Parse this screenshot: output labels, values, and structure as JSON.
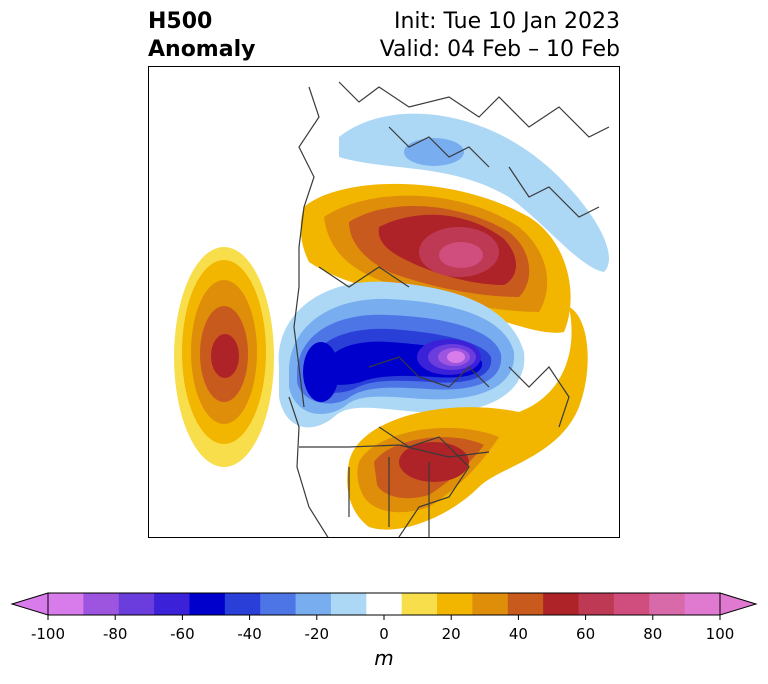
{
  "title": {
    "left_line1": "H500",
    "left_line2": "Anomaly",
    "right_line1": "Init: Tue 10 Jan 2023",
    "right_line2": "Valid: 04 Feb – 10 Feb"
  },
  "map": {
    "description_icon": "map-anomaly"
  },
  "colorbar": {
    "unit": "m",
    "ticks": [
      "-100",
      "-80",
      "-60",
      "-40",
      "-20",
      "0",
      "20",
      "40",
      "60",
      "80",
      "100"
    ],
    "levels": [
      -100,
      -90,
      -80,
      -70,
      -60,
      -50,
      -40,
      -30,
      -20,
      -10,
      10,
      20,
      30,
      40,
      50,
      60,
      70,
      80,
      90,
      100
    ],
    "colors": [
      "#d77cea",
      "#9d55e0",
      "#6b3ddd",
      "#3b22d9",
      "#0000cc",
      "#2a3fd8",
      "#4e75e6",
      "#78aeef",
      "#acd8f6",
      "#ffffff",
      "#f9de4c",
      "#f2b600",
      "#df8e0a",
      "#c95a1d",
      "#ad2327",
      "#be3a54",
      "#cf4e7d",
      "#d96aa9",
      "#e07ad0"
    ],
    "extend_min_color": "#d77cea",
    "extend_max_color": "#e07ad0"
  }
}
